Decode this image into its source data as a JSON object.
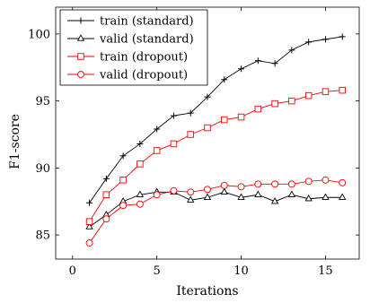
{
  "chart_data": {
    "type": "line",
    "title": "",
    "xlabel": "Iterations",
    "ylabel": "F1-score",
    "xlim": [
      -1,
      17
    ],
    "ylim": [
      83.2,
      102
    ],
    "xticks": [
      0,
      5,
      10,
      15
    ],
    "yticks": [
      85,
      90,
      95,
      100
    ],
    "grid": false,
    "legend_position": "top-left",
    "x": [
      1,
      2,
      3,
      4,
      5,
      6,
      7,
      8,
      9,
      10,
      11,
      12,
      13,
      14,
      15,
      16
    ],
    "series": [
      {
        "name": "train (standard)",
        "color": "#000000",
        "marker": "plus",
        "values": [
          87.4,
          89.2,
          90.9,
          91.8,
          92.9,
          93.9,
          94.1,
          95.3,
          96.6,
          97.4,
          98.0,
          97.8,
          98.8,
          99.4,
          99.6,
          99.8
        ]
      },
      {
        "name": "valid (standard)",
        "color": "#000000",
        "marker": "triangle",
        "values": [
          85.6,
          86.5,
          87.5,
          88.0,
          88.2,
          88.2,
          87.6,
          87.8,
          88.2,
          87.8,
          88.0,
          87.5,
          88.0,
          87.7,
          87.8,
          87.8
        ]
      },
      {
        "name": "train (dropout)",
        "color": "#ff0000",
        "marker": "square",
        "values": [
          86.0,
          88.0,
          89.1,
          90.3,
          91.3,
          91.8,
          92.5,
          93.0,
          93.6,
          93.8,
          94.4,
          94.8,
          95.0,
          95.4,
          95.7,
          95.8
        ]
      },
      {
        "name": "valid (dropout)",
        "color": "#ff0000",
        "marker": "circle",
        "values": [
          84.4,
          86.2,
          87.2,
          87.3,
          88.0,
          88.3,
          88.2,
          88.4,
          88.7,
          88.6,
          88.8,
          88.8,
          88.8,
          89.0,
          89.1,
          88.9
        ]
      }
    ]
  }
}
